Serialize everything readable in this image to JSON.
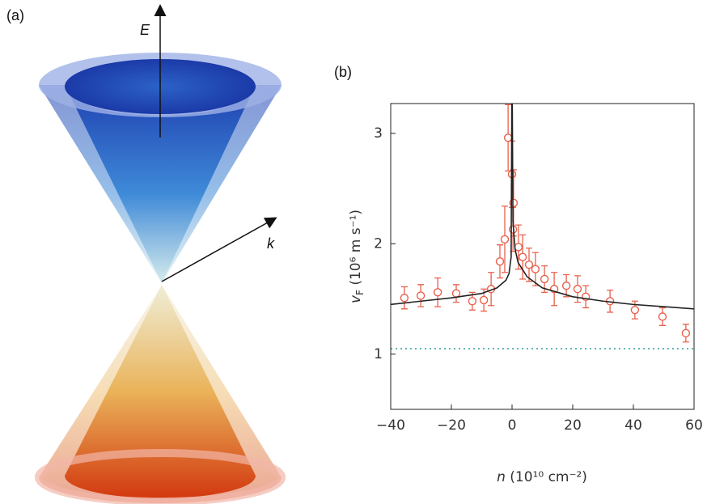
{
  "panel_a": {
    "label": "(a)",
    "axis_e": "E",
    "axis_k": "k"
  },
  "chart_data": {
    "type": "scatter",
    "panel_label": "(b)",
    "xlabel_symbol": "n",
    "xlabel_unit": "(10¹⁰ cm⁻²)",
    "ylabel_symbol": "v",
    "ylabel_subscript": "F",
    "ylabel_unit": "(10⁶ m s⁻¹)",
    "xlim": [
      -40,
      60
    ],
    "ylim": [
      0.5,
      3.27
    ],
    "xticks": [
      {
        "value": -40,
        "label": "−40"
      },
      {
        "value": -20,
        "label": "−20"
      },
      0,
      20,
      40,
      60
    ],
    "yticks": [
      1,
      2,
      3
    ],
    "reference_line": {
      "value": 1.05,
      "color": "#2aa198"
    },
    "series": [
      {
        "type": "scatter",
        "color": "#e8604c",
        "x": [
          -35.5,
          -30.1,
          -24.5,
          -18.4,
          -13.1,
          -9.3,
          -6.9,
          -4,
          -2.4,
          -1.3,
          0,
          0.5,
          0.3,
          2.1,
          3.5,
          5.6,
          7.7,
          10.7,
          13.9,
          17.9,
          21.6,
          24.3,
          32.3,
          40.5,
          49.6,
          57.3
        ],
        "values": [
          1.51,
          1.53,
          1.56,
          1.55,
          1.48,
          1.49,
          1.59,
          1.84,
          2.04,
          2.96,
          2.63,
          2.37,
          2.13,
          1.97,
          1.88,
          1.81,
          1.77,
          1.68,
          1.59,
          1.62,
          1.59,
          1.52,
          1.48,
          1.4,
          1.34,
          1.19
        ],
        "errors": [
          0.1,
          0.1,
          0.13,
          0.08,
          0.08,
          0.1,
          0.15,
          0.15,
          0.3,
          0.3,
          0.3,
          0.3,
          0.2,
          0.2,
          0.2,
          0.15,
          0.15,
          0.12,
          0.15,
          0.1,
          0.12,
          0.1,
          0.1,
          0.08,
          0.08,
          0.08
        ]
      },
      {
        "type": "line",
        "color": "#222222",
        "x": [
          -40,
          -30,
          -20,
          -10,
          -5,
          -2,
          -1,
          -0.3,
          -0.05,
          0.05,
          0.3,
          1,
          2,
          5,
          10,
          20,
          30,
          40,
          50,
          60
        ],
        "values": [
          1.45,
          1.48,
          1.51,
          1.55,
          1.6,
          1.67,
          1.73,
          1.88,
          3.4,
          3.4,
          2.2,
          1.95,
          1.83,
          1.7,
          1.6,
          1.52,
          1.48,
          1.45,
          1.43,
          1.41
        ]
      }
    ]
  }
}
